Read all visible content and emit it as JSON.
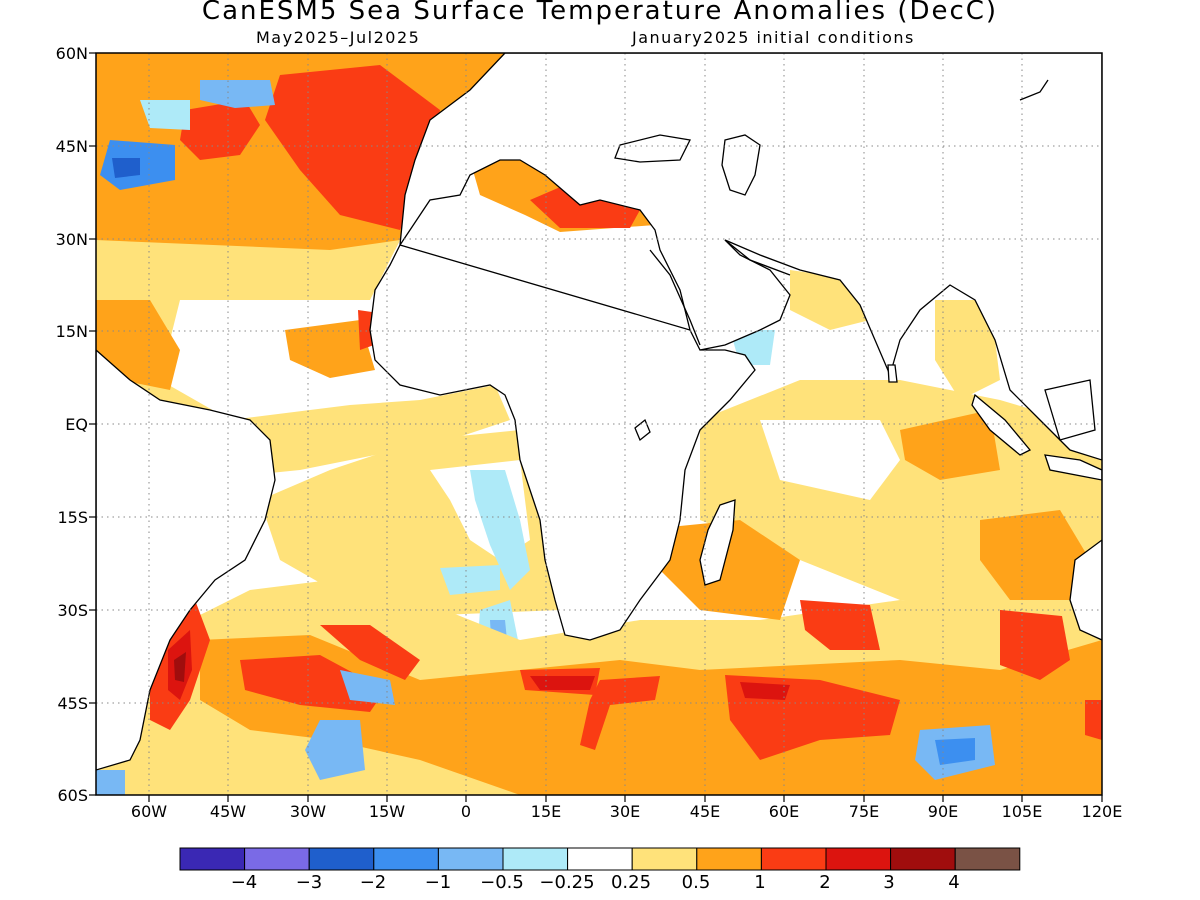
{
  "header": {
    "title": "CanESM5 Sea Surface Temperature Anomalies (DecC)",
    "subtitle_left": "May2025–Jul2025",
    "subtitle_right": "January2025 initial conditions"
  },
  "axes": {
    "lat_labels": [
      "60N",
      "45N",
      "30N",
      "15N",
      "EQ",
      "15S",
      "30S",
      "45S",
      "60S"
    ],
    "lon_labels": [
      "60W",
      "45W",
      "30W",
      "15W",
      "0",
      "15E",
      "30E",
      "45E",
      "60E",
      "75E",
      "90E",
      "105E",
      "120E"
    ],
    "lat_range": [
      -60,
      60
    ],
    "lon_range": [
      -70,
      120
    ],
    "grid": "dotted gridlines every 15 degrees"
  },
  "colorbar": {
    "labels": [
      "−4",
      "−3",
      "−2",
      "−1",
      "−0.5",
      "−0.25",
      "0.25",
      "0.5",
      "1",
      "2",
      "3",
      "4"
    ],
    "colors": [
      "#3a28b4",
      "#7a6ae6",
      "#1f5fcc",
      "#3c8ff0",
      "#78b8f4",
      "#aeeaf8",
      "#ffffff",
      "#ffe27a",
      "#ffa31a",
      "#fa3c14",
      "#dc140f",
      "#a00d0d",
      "#7a5245"
    ]
  },
  "legend_colors": {
    "land": "#ffffff",
    "coast": "#000000"
  }
}
